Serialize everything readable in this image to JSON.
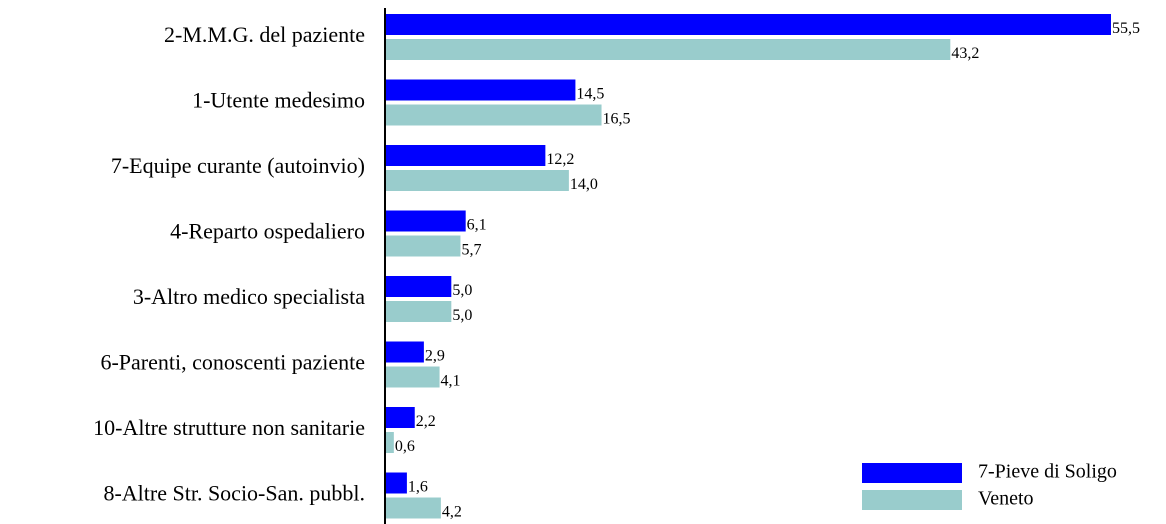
{
  "chart_data": {
    "type": "hbar",
    "categories": [
      "2-M.M.G. del paziente",
      "1-Utente medesimo",
      "7-Equipe curante (autoinvio)",
      "4-Reparto ospedaliero",
      "3-Altro medico specialista",
      "6-Parenti, conoscenti paziente",
      "10-Altre strutture non sanitarie",
      "8-Altre Str. Socio-San. pubbl."
    ],
    "series": [
      {
        "name": "7-Pieve di Soligo",
        "color": "#0000ff",
        "values": [
          55.5,
          14.5,
          12.2,
          6.1,
          5.0,
          2.9,
          2.2,
          1.6
        ],
        "value_labels": [
          "55,5",
          "14,5",
          "12,2",
          "6,1",
          "5,0",
          "2,9",
          "2,2",
          "1,6"
        ]
      },
      {
        "name": "Veneto",
        "color": "#99cccc",
        "values": [
          43.2,
          16.5,
          14.0,
          5.7,
          5.0,
          4.1,
          0.6,
          4.2
        ],
        "value_labels": [
          "43,2",
          "16,5",
          "14,0",
          "5,7",
          "5,0",
          "4,1",
          "0,6",
          "4,2"
        ]
      }
    ],
    "legend": "lower right"
  }
}
